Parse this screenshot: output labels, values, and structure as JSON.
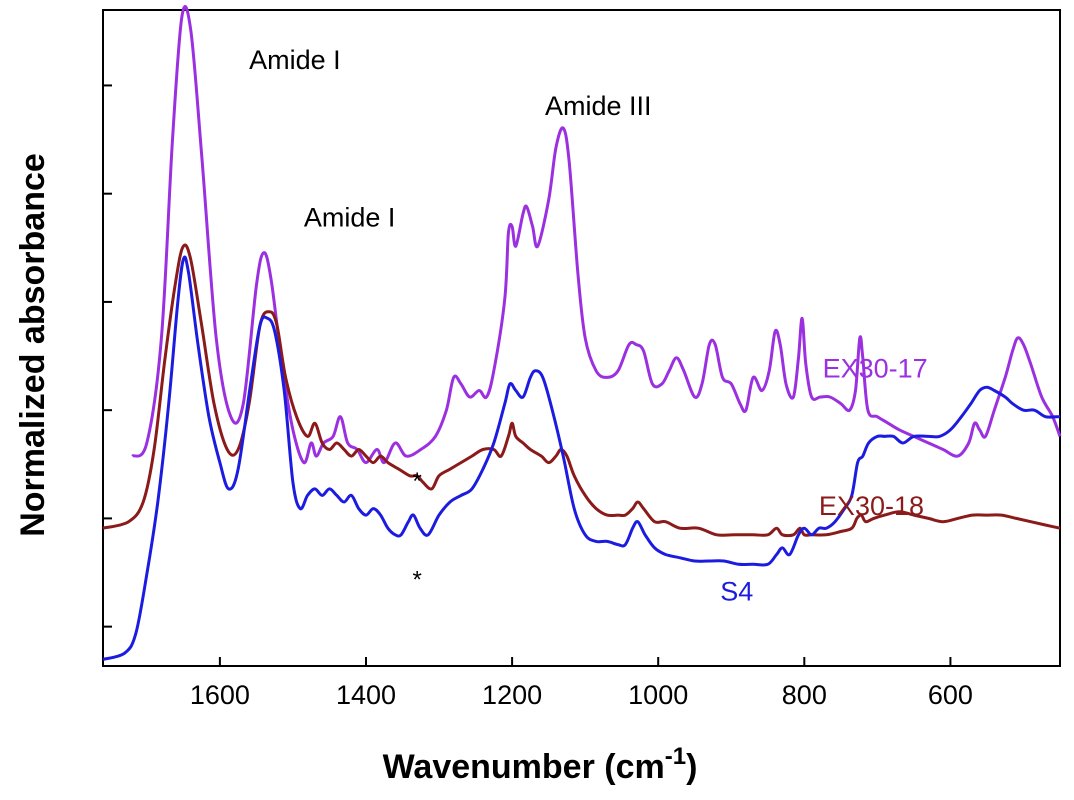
{
  "chart_data": {
    "type": "line",
    "xlabel": "Wavenumber (cm",
    "xlabel_sup": "-1",
    "xlabel_close": ")",
    "ylabel": "Normalized absorbance",
    "xlim": [
      1760,
      450
    ],
    "ylim": [
      0,
      100
    ],
    "x_reversed": true,
    "grid": false,
    "x_ticks": [
      1600,
      1400,
      1200,
      1000,
      800,
      600
    ],
    "x_tick_labels": [
      "1600",
      "1400",
      "1200",
      "1000",
      "800",
      "600"
    ],
    "y_ticks": [
      6,
      22.5,
      39,
      55.5,
      72,
      88.5
    ],
    "series": [
      {
        "name": "EX30-17",
        "color": "#9b30e0",
        "points": [
          [
            1720,
            32
          ],
          [
            1700,
            34
          ],
          [
            1680,
            50
          ],
          [
            1665,
            80
          ],
          [
            1652,
            99
          ],
          [
            1640,
            97
          ],
          [
            1625,
            78
          ],
          [
            1605,
            50
          ],
          [
            1585,
            38
          ],
          [
            1568,
            40
          ],
          [
            1550,
            58
          ],
          [
            1540,
            63
          ],
          [
            1530,
            59
          ],
          [
            1515,
            46
          ],
          [
            1500,
            36
          ],
          [
            1485,
            31
          ],
          [
            1475,
            34
          ],
          [
            1468,
            32
          ],
          [
            1458,
            34
          ],
          [
            1445,
            35
          ],
          [
            1435,
            38
          ],
          [
            1425,
            34
          ],
          [
            1412,
            33
          ],
          [
            1400,
            31
          ],
          [
            1385,
            33
          ],
          [
            1375,
            31
          ],
          [
            1360,
            34
          ],
          [
            1345,
            32
          ],
          [
            1325,
            33
          ],
          [
            1305,
            35
          ],
          [
            1290,
            39
          ],
          [
            1280,
            44
          ],
          [
            1270,
            43
          ],
          [
            1258,
            41
          ],
          [
            1245,
            42
          ],
          [
            1235,
            41
          ],
          [
            1225,
            45
          ],
          [
            1210,
            56
          ],
          [
            1205,
            66
          ],
          [
            1200,
            67
          ],
          [
            1195,
            64
          ],
          [
            1185,
            69
          ],
          [
            1180,
            70
          ],
          [
            1172,
            67
          ],
          [
            1165,
            64
          ],
          [
            1150,
            71
          ],
          [
            1140,
            79
          ],
          [
            1130,
            82
          ],
          [
            1122,
            77
          ],
          [
            1110,
            60
          ],
          [
            1100,
            50
          ],
          [
            1085,
            45
          ],
          [
            1070,
            44
          ],
          [
            1055,
            45
          ],
          [
            1040,
            49
          ],
          [
            1030,
            49
          ],
          [
            1020,
            48
          ],
          [
            1008,
            43
          ],
          [
            995,
            43
          ],
          [
            985,
            45
          ],
          [
            975,
            47
          ],
          [
            965,
            45
          ],
          [
            950,
            41
          ],
          [
            940,
            43
          ],
          [
            930,
            49
          ],
          [
            922,
            49
          ],
          [
            912,
            44
          ],
          [
            900,
            43
          ],
          [
            888,
            40
          ],
          [
            880,
            39
          ],
          [
            870,
            44
          ],
          [
            858,
            42
          ],
          [
            848,
            45
          ],
          [
            840,
            51
          ],
          [
            833,
            49
          ],
          [
            825,
            43
          ],
          [
            815,
            41
          ],
          [
            808,
            47
          ],
          [
            803,
            53
          ],
          [
            798,
            46
          ],
          [
            790,
            41
          ],
          [
            778,
            41
          ],
          [
            765,
            41
          ],
          [
            750,
            40
          ],
          [
            738,
            39
          ],
          [
            730,
            42
          ],
          [
            724,
            50
          ],
          [
            720,
            47
          ],
          [
            713,
            39
          ],
          [
            700,
            38
          ],
          [
            685,
            37
          ],
          [
            670,
            36
          ],
          [
            650,
            35
          ],
          [
            630,
            34
          ],
          [
            610,
            33
          ],
          [
            590,
            32
          ],
          [
            575,
            34
          ],
          [
            567,
            37
          ],
          [
            560,
            36
          ],
          [
            552,
            35
          ],
          [
            540,
            39
          ],
          [
            525,
            44
          ],
          [
            515,
            48
          ],
          [
            508,
            50
          ],
          [
            500,
            49
          ],
          [
            490,
            46
          ],
          [
            475,
            41
          ],
          [
            460,
            38
          ],
          [
            450,
            35
          ]
        ]
      },
      {
        "name": "EX30-18",
        "color": "#8b1a1a",
        "points": [
          [
            1760,
            21
          ],
          [
            1725,
            22
          ],
          [
            1705,
            25
          ],
          [
            1690,
            33
          ],
          [
            1675,
            47
          ],
          [
            1660,
            59
          ],
          [
            1650,
            64
          ],
          [
            1640,
            62
          ],
          [
            1625,
            52
          ],
          [
            1608,
            40
          ],
          [
            1590,
            33
          ],
          [
            1575,
            33
          ],
          [
            1560,
            40
          ],
          [
            1545,
            52
          ],
          [
            1532,
            54
          ],
          [
            1522,
            52
          ],
          [
            1510,
            44
          ],
          [
            1495,
            38
          ],
          [
            1480,
            35
          ],
          [
            1470,
            37
          ],
          [
            1460,
            34
          ],
          [
            1450,
            33
          ],
          [
            1440,
            34
          ],
          [
            1430,
            33
          ],
          [
            1420,
            32
          ],
          [
            1410,
            33
          ],
          [
            1400,
            32
          ],
          [
            1390,
            31
          ],
          [
            1380,
            32
          ],
          [
            1370,
            31
          ],
          [
            1355,
            30
          ],
          [
            1340,
            29
          ],
          [
            1330,
            29
          ],
          [
            1322,
            28
          ],
          [
            1310,
            27
          ],
          [
            1300,
            29
          ],
          [
            1285,
            30
          ],
          [
            1270,
            31
          ],
          [
            1255,
            32
          ],
          [
            1240,
            33
          ],
          [
            1225,
            33
          ],
          [
            1215,
            32
          ],
          [
            1205,
            35
          ],
          [
            1200,
            37
          ],
          [
            1195,
            35
          ],
          [
            1185,
            34
          ],
          [
            1175,
            33
          ],
          [
            1160,
            32
          ],
          [
            1150,
            31
          ],
          [
            1140,
            32
          ],
          [
            1133,
            33
          ],
          [
            1125,
            32
          ],
          [
            1115,
            29
          ],
          [
            1100,
            26
          ],
          [
            1085,
            24
          ],
          [
            1070,
            23
          ],
          [
            1055,
            23
          ],
          [
            1045,
            23
          ],
          [
            1035,
            24
          ],
          [
            1028,
            25
          ],
          [
            1020,
            24
          ],
          [
            1005,
            22
          ],
          [
            990,
            22
          ],
          [
            970,
            21
          ],
          [
            945,
            21
          ],
          [
            920,
            20
          ],
          [
            895,
            20
          ],
          [
            870,
            20
          ],
          [
            850,
            20
          ],
          [
            838,
            21
          ],
          [
            830,
            20
          ],
          [
            815,
            20
          ],
          [
            806,
            21
          ],
          [
            800,
            20
          ],
          [
            790,
            20
          ],
          [
            770,
            20
          ],
          [
            750,
            20.5
          ],
          [
            735,
            21
          ],
          [
            728,
            22.5
          ],
          [
            722,
            23
          ],
          [
            716,
            22
          ],
          [
            705,
            22.5
          ],
          [
            690,
            23
          ],
          [
            670,
            23.5
          ],
          [
            650,
            23
          ],
          [
            630,
            22.5
          ],
          [
            610,
            22
          ],
          [
            590,
            22.5
          ],
          [
            570,
            23
          ],
          [
            550,
            23
          ],
          [
            530,
            23
          ],
          [
            510,
            22.5
          ],
          [
            490,
            22
          ],
          [
            470,
            21.5
          ],
          [
            450,
            21
          ]
        ]
      },
      {
        "name": "S4",
        "color": "#1c1ce0",
        "points": [
          [
            1760,
            1
          ],
          [
            1730,
            2
          ],
          [
            1715,
            5
          ],
          [
            1700,
            14
          ],
          [
            1685,
            25
          ],
          [
            1670,
            40
          ],
          [
            1658,
            55
          ],
          [
            1650,
            62
          ],
          [
            1643,
            60
          ],
          [
            1630,
            49
          ],
          [
            1615,
            38
          ],
          [
            1600,
            31
          ],
          [
            1588,
            27
          ],
          [
            1575,
            30
          ],
          [
            1558,
            43
          ],
          [
            1545,
            52
          ],
          [
            1535,
            53
          ],
          [
            1525,
            51
          ],
          [
            1512,
            42
          ],
          [
            1500,
            28
          ],
          [
            1490,
            24
          ],
          [
            1480,
            26
          ],
          [
            1470,
            27
          ],
          [
            1460,
            26
          ],
          [
            1450,
            27
          ],
          [
            1440,
            26
          ],
          [
            1430,
            25
          ],
          [
            1420,
            26
          ],
          [
            1410,
            24
          ],
          [
            1400,
            23
          ],
          [
            1390,
            24
          ],
          [
            1380,
            23
          ],
          [
            1370,
            21
          ],
          [
            1360,
            20
          ],
          [
            1352,
            20
          ],
          [
            1342,
            22
          ],
          [
            1335,
            23
          ],
          [
            1326,
            21
          ],
          [
            1315,
            20
          ],
          [
            1300,
            23
          ],
          [
            1285,
            25
          ],
          [
            1270,
            26
          ],
          [
            1255,
            27
          ],
          [
            1240,
            30
          ],
          [
            1225,
            34
          ],
          [
            1210,
            40
          ],
          [
            1203,
            43
          ],
          [
            1195,
            42
          ],
          [
            1185,
            41
          ],
          [
            1175,
            44
          ],
          [
            1168,
            45
          ],
          [
            1158,
            44
          ],
          [
            1145,
            39
          ],
          [
            1130,
            32
          ],
          [
            1115,
            24
          ],
          [
            1100,
            20
          ],
          [
            1085,
            19
          ],
          [
            1070,
            19
          ],
          [
            1055,
            18.5
          ],
          [
            1045,
            18.5
          ],
          [
            1035,
            21
          ],
          [
            1028,
            22
          ],
          [
            1018,
            20
          ],
          [
            1005,
            18
          ],
          [
            990,
            17
          ],
          [
            970,
            16.5
          ],
          [
            950,
            16
          ],
          [
            930,
            16
          ],
          [
            910,
            16
          ],
          [
            890,
            15.5
          ],
          [
            870,
            15.5
          ],
          [
            850,
            15.5
          ],
          [
            838,
            17
          ],
          [
            830,
            18
          ],
          [
            820,
            17
          ],
          [
            808,
            20
          ],
          [
            800,
            21
          ],
          [
            790,
            20
          ],
          [
            780,
            21
          ],
          [
            770,
            21
          ],
          [
            758,
            22
          ],
          [
            745,
            24
          ],
          [
            735,
            26
          ],
          [
            727,
            31
          ],
          [
            720,
            32
          ],
          [
            712,
            34
          ],
          [
            700,
            35
          ],
          [
            690,
            35
          ],
          [
            678,
            35
          ],
          [
            665,
            34
          ],
          [
            650,
            35
          ],
          [
            630,
            35
          ],
          [
            615,
            35
          ],
          [
            600,
            36
          ],
          [
            585,
            38
          ],
          [
            572,
            40
          ],
          [
            560,
            42
          ],
          [
            550,
            42.5
          ],
          [
            540,
            42
          ],
          [
            525,
            41
          ],
          [
            515,
            40
          ],
          [
            500,
            39
          ],
          [
            485,
            39
          ],
          [
            470,
            38
          ],
          [
            455,
            38
          ],
          [
            450,
            38
          ]
        ]
      }
    ],
    "series_labels": [
      {
        "text": "EX30-17",
        "color": "#9b30e0",
        "at_x": 775,
        "at_y": 44
      },
      {
        "text": "EX30-18",
        "color": "#8b1a1a",
        "at_x": 780,
        "at_y": 23
      },
      {
        "text": "S4",
        "color": "#1c1ce0",
        "at_x": 915,
        "at_y": 10
      }
    ],
    "annotations": [
      {
        "text": "Amide I",
        "at_x": 1560,
        "at_y": 91
      },
      {
        "text": "Amide I",
        "at_x": 1485,
        "at_y": 67
      },
      {
        "text": "Amide III",
        "at_x": 1155,
        "at_y": 84
      },
      {
        "text": "*",
        "at_x": 1330,
        "at_y": 27
      },
      {
        "text": "*",
        "at_x": 1330,
        "at_y": 12
      }
    ]
  }
}
